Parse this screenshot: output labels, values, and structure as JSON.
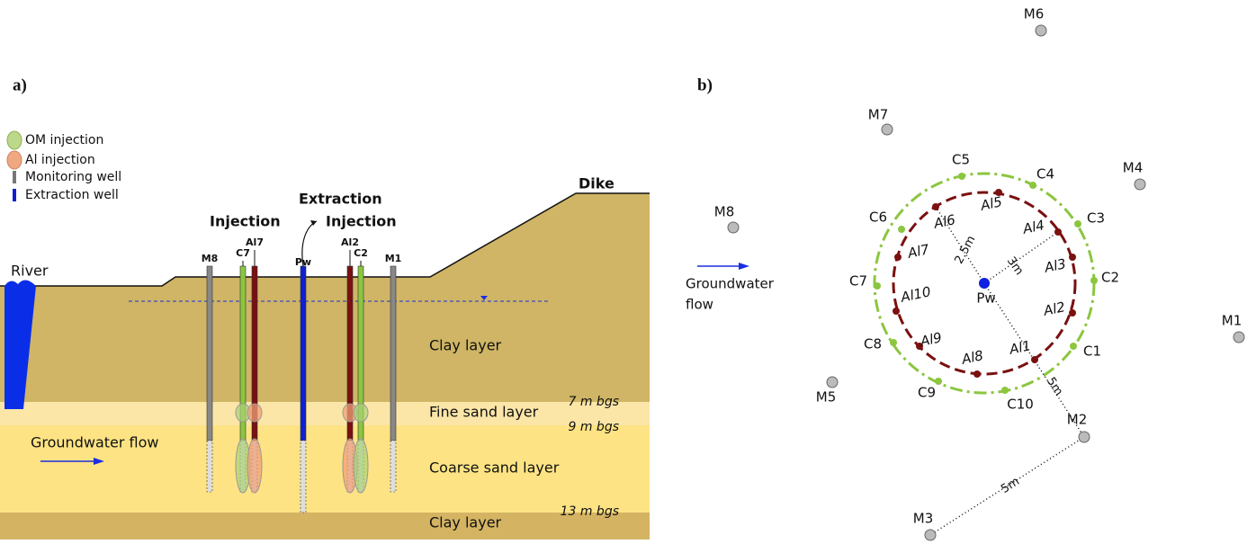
{
  "panel_a": {
    "label": "a)",
    "legend": [
      "OM injection",
      "Al injection",
      "Monitoring well",
      "Extraction well"
    ],
    "river": "River",
    "dike": "Dike",
    "headings": [
      "Injection",
      "Extraction",
      "Injection"
    ],
    "wells": [
      "M8",
      "C7",
      "Al7",
      "Pw",
      "Al2",
      "C2",
      "M1"
    ],
    "layers": [
      "Clay layer",
      "Fine sand layer",
      "Coarse sand layer",
      "Clay layer"
    ],
    "depths": [
      "7 m bgs",
      "9 m bgs",
      "13 m bgs"
    ],
    "flow": "Groundwater flow"
  },
  "panel_b": {
    "label": "b)",
    "pumping_well": "Pw",
    "monitoring_wells": [
      "M1",
      "M2",
      "M3",
      "M4",
      "M5",
      "M6",
      "M7",
      "M8"
    ],
    "om_wells": [
      "C1",
      "C2",
      "C3",
      "C4",
      "C5",
      "C6",
      "C7",
      "C8",
      "C9",
      "C10"
    ],
    "al_wells": [
      "Al1",
      "Al2",
      "Al3",
      "Al4",
      "Al5",
      "Al6",
      "Al7",
      "Al8",
      "Al9",
      "Al10"
    ],
    "distances": [
      "2.5m",
      "3m",
      "5m",
      "5m"
    ],
    "flow": [
      "Groundwater",
      "flow"
    ]
  }
}
